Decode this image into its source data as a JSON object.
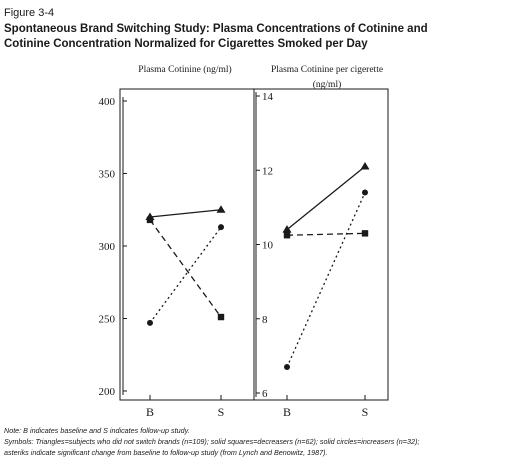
{
  "figure": {
    "label": "Figure 3-4",
    "title_line1": "Spontaneous Brand Switching Study: Plasma Concentrations of Cotinine and",
    "title_line2": "Cotinine Concentration Normalized for Cigarettes Smoked per Day"
  },
  "notes": {
    "line1": "Note: B indicates baseline and S indicates follow-up study.",
    "line2": "Symbols: Triangles=subjects who did not switch brands (n=109); solid squares=decreasers (n=62); solid circles=increasers (n=32);",
    "line3": "asteriks indicate significant change from baseline to follow-up study (from Lynch and Benowitz, 1987)."
  },
  "chart_data": [
    {
      "type": "line",
      "title": "Plasma Cotinine (ng/ml)",
      "categories": [
        "B",
        "S"
      ],
      "ylim": [
        195,
        405
      ],
      "yticks": [
        200,
        250,
        300,
        350,
        400
      ],
      "grid": false,
      "series": [
        {
          "name": "Triangles",
          "marker": "triangle",
          "line": "solid",
          "values": [
            320,
            325
          ]
        },
        {
          "name": "Solid squares",
          "marker": "square",
          "line": "dashed",
          "values": [
            318,
            251
          ]
        },
        {
          "name": "Solid circles",
          "marker": "circle",
          "line": "dotted",
          "values": [
            247,
            313
          ]
        }
      ]
    },
    {
      "type": "line",
      "title_line1": "Plasma Cotinine per cigerette",
      "title_line2": "(ng/ml)",
      "categories": [
        "B",
        "S"
      ],
      "ylim": [
        5.9,
        14.1
      ],
      "yticks": [
        6,
        8,
        10,
        12,
        14
      ],
      "grid": false,
      "series": [
        {
          "name": "Triangles",
          "marker": "triangle",
          "line": "solid",
          "values": [
            10.4,
            12.1
          ]
        },
        {
          "name": "Solid squares",
          "marker": "square",
          "line": "dashed",
          "values": [
            10.25,
            10.3
          ]
        },
        {
          "name": "Solid circles",
          "marker": "circle",
          "line": "dotted",
          "values": [
            6.7,
            11.4
          ]
        }
      ]
    }
  ]
}
